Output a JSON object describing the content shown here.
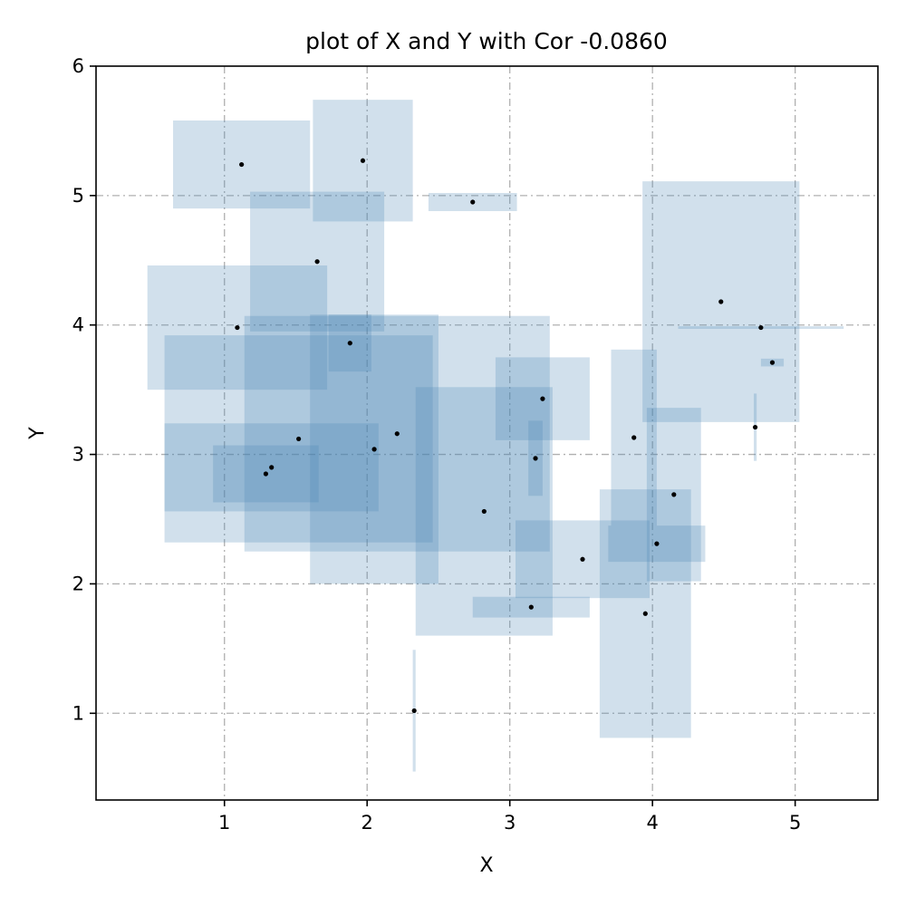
{
  "chart_data": {
    "type": "scatter",
    "title": "plot of X and Y with Cor -0.0860",
    "xlabel": "X",
    "ylabel": "Y",
    "xlim": [
      0.1,
      5.58
    ],
    "ylim": [
      0.33,
      6.0
    ],
    "xticks": [
      1,
      2,
      3,
      4,
      5
    ],
    "yticks": [
      1,
      2,
      3,
      4,
      5,
      6
    ],
    "grid": true,
    "point_color": "#000000",
    "box_color": "#4682b4",
    "box_opacity": 0.25,
    "points": [
      {
        "x": 1.12,
        "y": 5.24,
        "xerr": 0.48,
        "yerr": 0.34
      },
      {
        "x": 1.97,
        "y": 5.27,
        "xerr": 0.35,
        "yerr": 0.47
      },
      {
        "x": 2.74,
        "y": 4.95,
        "xerr": 0.31,
        "yerr": 0.07
      },
      {
        "x": 1.65,
        "y": 4.49,
        "xerr": 0.47,
        "yerr": 0.54
      },
      {
        "x": 1.09,
        "y": 3.98,
        "xerr": 0.63,
        "yerr": 0.48
      },
      {
        "x": 1.88,
        "y": 3.86,
        "xerr": 0.15,
        "yerr": 0.22
      },
      {
        "x": 1.52,
        "y": 3.12,
        "xerr": 0.94,
        "yerr": 0.8
      },
      {
        "x": 1.33,
        "y": 2.9,
        "xerr": 0.75,
        "yerr": 0.34
      },
      {
        "x": 1.29,
        "y": 2.85,
        "xerr": 0.37,
        "yerr": 0.22
      },
      {
        "x": 2.21,
        "y": 3.16,
        "xerr": 1.07,
        "yerr": 0.91
      },
      {
        "x": 2.05,
        "y": 3.04,
        "xerr": 0.45,
        "yerr": 1.04
      },
      {
        "x": 2.33,
        "y": 1.02,
        "xerr": 0.01,
        "yerr": 0.47
      },
      {
        "x": 2.82,
        "y": 2.56,
        "xerr": 0.48,
        "yerr": 0.96
      },
      {
        "x": 3.23,
        "y": 3.43,
        "xerr": 0.33,
        "yerr": 0.32
      },
      {
        "x": 3.18,
        "y": 2.97,
        "xerr": 0.05,
        "yerr": 0.29
      },
      {
        "x": 3.51,
        "y": 2.19,
        "xerr": 0.47,
        "yerr": 0.3
      },
      {
        "x": 3.15,
        "y": 1.82,
        "xerr": 0.41,
        "yerr": 0.08
      },
      {
        "x": 3.87,
        "y": 3.13,
        "xerr": 0.16,
        "yerr": 0.68
      },
      {
        "x": 4.15,
        "y": 2.69,
        "xerr": 0.19,
        "yerr": 0.67
      },
      {
        "x": 4.03,
        "y": 2.31,
        "xerr": 0.34,
        "yerr": 0.14
      },
      {
        "x": 3.95,
        "y": 1.77,
        "xerr": 0.32,
        "yerr": 0.96
      },
      {
        "x": 4.48,
        "y": 4.18,
        "xerr": 0.55,
        "yerr": 0.93
      },
      {
        "x": 4.76,
        "y": 3.98,
        "xerr": 0.58,
        "yerr": 0.01
      },
      {
        "x": 4.84,
        "y": 3.71,
        "xerr": 0.08,
        "yerr": 0.03
      },
      {
        "x": 4.72,
        "y": 3.21,
        "xerr": 0.01,
        "yerr": 0.26
      }
    ]
  }
}
